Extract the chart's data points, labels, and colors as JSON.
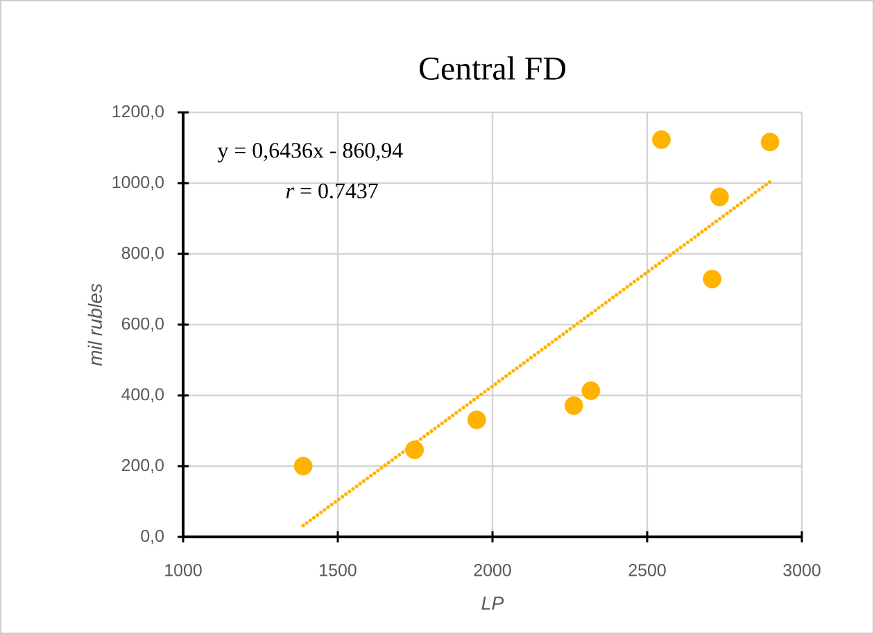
{
  "chart_data": {
    "type": "scatter",
    "title": "Central FD",
    "xlabel": "LP",
    "ylabel": "mil rubles",
    "annotations": [
      "y = 0,6436x - 860,94",
      "*r*  = 0.7437"
    ],
    "series": [
      {
        "color": "#ffb300",
        "x": [
          1388,
          1748,
          1949,
          2263,
          2318,
          2546,
          2710,
          2734,
          2897
        ],
        "values": [
          200,
          246,
          331,
          371,
          413,
          1123,
          729,
          961,
          1116
        ]
      },
      {
        "type": "line",
        "color": "#ffb300",
        "line_style": "dotted",
        "marker": "none",
        "x": [
          1388,
          2897
        ],
        "values": [
          32,
          1004
        ]
      }
    ],
    "marker": "circle",
    "grid": true,
    "xlim": [
      1000,
      3000
    ],
    "xticks": [
      1000,
      1500,
      2000,
      2500,
      3000
    ],
    "ylim": [
      0,
      1200
    ],
    "yticks": [
      {
        "value": 0,
        "label": "0,0"
      },
      {
        "value": 200,
        "label": "200,0"
      },
      {
        "value": 400,
        "label": "400,0"
      },
      {
        "value": 600,
        "label": "600,0"
      },
      {
        "value": 800,
        "label": "800,0"
      },
      {
        "value": 1000,
        "label": "1000,0"
      },
      {
        "value": 1200,
        "label": "1200,0"
      }
    ]
  }
}
